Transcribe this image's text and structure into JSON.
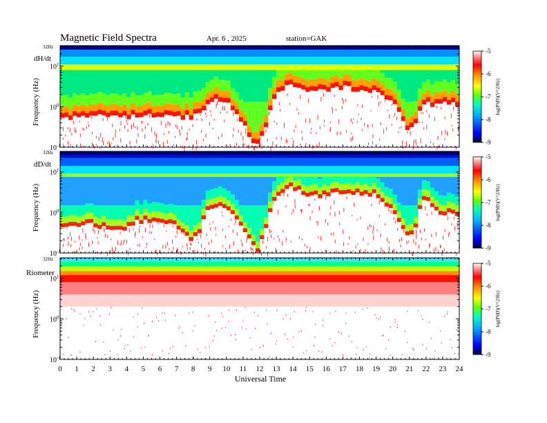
{
  "header": {
    "title": "Magnetic  Field  Spectra",
    "date": "Apr. 6  , 2025",
    "station": "station=GAK"
  },
  "chart_data": [
    {
      "type": "heatmap",
      "panel_label": "dH/dt",
      "top_label": "32Hz",
      "ylabel": "Frequency  (Hz)",
      "yscale": "log",
      "ylim": [
        0.1,
        32
      ],
      "yticks": [
        {
          "base": "10",
          "exp": "1"
        },
        {
          "base": "10",
          "exp": "0"
        },
        {
          "base": "10",
          "exp": "-1"
        }
      ],
      "xlim": [
        0,
        24
      ],
      "colorbar": {
        "label": "log(PSD)(V^2/Hz)",
        "min": -9,
        "max": -5,
        "ticks": [
          "-5",
          "-6",
          "-7",
          "-8",
          "-9"
        ]
      },
      "cutoff_curve_hz": [
        [
          0,
          0.5
        ],
        [
          1,
          0.55
        ],
        [
          2,
          0.6
        ],
        [
          3,
          0.6
        ],
        [
          4,
          0.55
        ],
        [
          5,
          0.6
        ],
        [
          6,
          0.6
        ],
        [
          7,
          0.55
        ],
        [
          8,
          0.55
        ],
        [
          8.5,
          0.7
        ],
        [
          9,
          1.2
        ],
        [
          9.5,
          1.5
        ],
        [
          10,
          1.3
        ],
        [
          10.5,
          0.7
        ],
        [
          11,
          0.35
        ],
        [
          11.5,
          0.15
        ],
        [
          12,
          0.1
        ],
        [
          12.5,
          0.4
        ],
        [
          13,
          2.0
        ],
        [
          13.5,
          3.0
        ],
        [
          14,
          3.5
        ],
        [
          14.5,
          2.8
        ],
        [
          15,
          2.2
        ],
        [
          16,
          2.5
        ],
        [
          17,
          3.0
        ],
        [
          18,
          2.6
        ],
        [
          19,
          2.5
        ],
        [
          19.5,
          1.6
        ],
        [
          20,
          1.2
        ],
        [
          20.5,
          0.5
        ],
        [
          21,
          0.2
        ],
        [
          21.5,
          0.5
        ],
        [
          22,
          1.3
        ],
        [
          22.5,
          1.0
        ],
        [
          23,
          1.2
        ],
        [
          24,
          1.1
        ]
      ]
    },
    {
      "type": "heatmap",
      "panel_label": "dD/dt",
      "top_label": "32Hz",
      "ylabel": "Frequency  (Hz)",
      "yscale": "log",
      "ylim": [
        0.1,
        32
      ],
      "yticks": [
        {
          "base": "10",
          "exp": "1"
        },
        {
          "base": "10",
          "exp": "0"
        },
        {
          "base": "10",
          "exp": "-1"
        }
      ],
      "xlim": [
        0,
        24
      ],
      "colorbar": {
        "label": "log(PSD)(V^2/Hz)",
        "min": -9,
        "max": -5,
        "ticks": [
          "-5",
          "-6",
          "-7",
          "-8",
          "-9"
        ]
      },
      "cutoff_curve_hz": [
        [
          0,
          0.5
        ],
        [
          1,
          0.45
        ],
        [
          2,
          0.5
        ],
        [
          3,
          0.4
        ],
        [
          4,
          0.35
        ],
        [
          4.5,
          0.6
        ],
        [
          5,
          0.6
        ],
        [
          6,
          0.55
        ],
        [
          7,
          0.45
        ],
        [
          8,
          0.2
        ],
        [
          8.5,
          0.4
        ],
        [
          9,
          1.2
        ],
        [
          9.5,
          1.4
        ],
        [
          10,
          1.3
        ],
        [
          10.5,
          0.7
        ],
        [
          11,
          0.35
        ],
        [
          11.5,
          0.15
        ],
        [
          12,
          0.1
        ],
        [
          12.5,
          0.5
        ],
        [
          13,
          2.5
        ],
        [
          13.5,
          3.5
        ],
        [
          14,
          4.0
        ],
        [
          14.5,
          3.0
        ],
        [
          15,
          2.4
        ],
        [
          16,
          2.6
        ],
        [
          17,
          3.2
        ],
        [
          18,
          2.7
        ],
        [
          19,
          2.6
        ],
        [
          19.5,
          1.6
        ],
        [
          20,
          1.0
        ],
        [
          20.5,
          0.5
        ],
        [
          21,
          0.2
        ],
        [
          21.5,
          0.6
        ],
        [
          22,
          2.5
        ],
        [
          22.5,
          1.0
        ],
        [
          23,
          1.0
        ],
        [
          24,
          0.9
        ]
      ]
    },
    {
      "type": "heatmap",
      "panel_label": "Riometer",
      "top_label": "32Hz",
      "ylabel": "Frequency  (Hz)",
      "yscale": "log",
      "ylim": [
        0.1,
        32
      ],
      "yticks": [
        {
          "base": "10",
          "exp": "1"
        },
        {
          "base": "10",
          "exp": "0"
        },
        {
          "base": "10",
          "exp": "-1"
        }
      ],
      "xlim": [
        0,
        24
      ],
      "colorbar": {
        "label": "log(PSD)(V^2/Hz)",
        "min": -9,
        "max": -5,
        "ticks": [
          "-5",
          "-6",
          "-7",
          "-8",
          "-9"
        ]
      }
    }
  ],
  "xaxis": {
    "label": "Universal  Time",
    "ticks": [
      "0",
      "1",
      "2",
      "3",
      "4",
      "5",
      "6",
      "7",
      "8",
      "9",
      "10",
      "11",
      "12",
      "13",
      "14",
      "15",
      "16",
      "17",
      "18",
      "19",
      "20",
      "21",
      "22",
      "23",
      "24"
    ]
  },
  "colormap": [
    "#000060",
    "#0000ff",
    "#0080ff",
    "#00ffff",
    "#00ff80",
    "#80ff00",
    "#ffff00",
    "#ff8000",
    "#ff0000",
    "#ff8080",
    "#ffffff"
  ]
}
